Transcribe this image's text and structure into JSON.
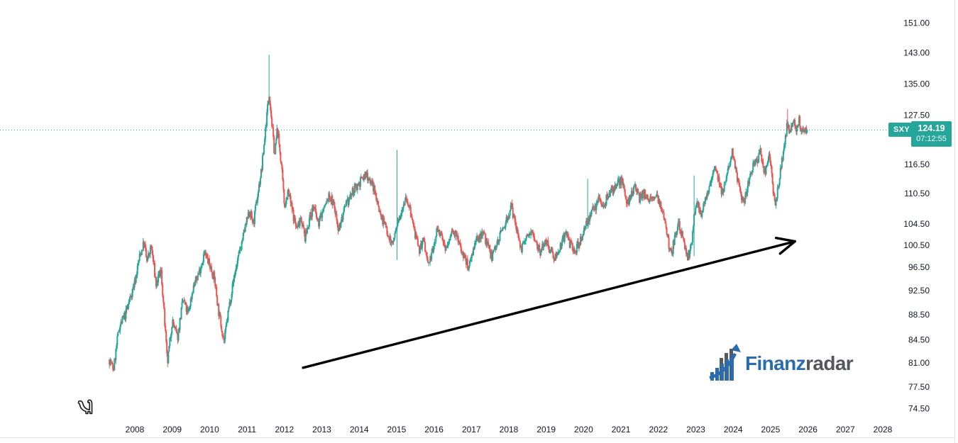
{
  "chart_data": {
    "type": "candlestick",
    "symbol": "SXY",
    "last_price": 124.19,
    "last_price_label": "124.19",
    "countdown": "07:12:55",
    "y_axis": {
      "scale": "log",
      "ticks": [
        151.0,
        143.0,
        135.0,
        127.5,
        116.5,
        110.5,
        104.5,
        100.5,
        96.5,
        92.5,
        88.5,
        84.5,
        81.0,
        77.5,
        74.5
      ]
    },
    "x_axis": {
      "years": [
        2008,
        2009,
        2010,
        2011,
        2012,
        2013,
        2014,
        2015,
        2016,
        2017,
        2018,
        2019,
        2020,
        2021,
        2022,
        2023,
        2024,
        2025,
        2026,
        2027,
        2028
      ]
    },
    "series_anchors": [
      [
        2007.32,
        81.5
      ],
      [
        2007.43,
        80.0
      ],
      [
        2007.58,
        86.5
      ],
      [
        2007.75,
        88.5
      ],
      [
        2008.0,
        94
      ],
      [
        2008.13,
        98.5
      ],
      [
        2008.25,
        101
      ],
      [
        2008.32,
        97.5
      ],
      [
        2008.44,
        100.3
      ],
      [
        2008.57,
        93.5
      ],
      [
        2008.7,
        96
      ],
      [
        2008.87,
        80.8
      ],
      [
        2009.0,
        87.5
      ],
      [
        2009.14,
        84.8
      ],
      [
        2009.29,
        91
      ],
      [
        2009.42,
        88.5
      ],
      [
        2009.56,
        93
      ],
      [
        2009.71,
        95.5
      ],
      [
        2009.86,
        99
      ],
      [
        2010.0,
        97
      ],
      [
        2010.13,
        94.5
      ],
      [
        2010.24,
        89
      ],
      [
        2010.39,
        84.2
      ],
      [
        2010.51,
        89.5
      ],
      [
        2010.66,
        95
      ],
      [
        2010.81,
        99.5
      ],
      [
        2010.94,
        103.5
      ],
      [
        2011.07,
        107
      ],
      [
        2011.17,
        104.5
      ],
      [
        2011.28,
        110
      ],
      [
        2011.4,
        116
      ],
      [
        2011.49,
        124
      ],
      [
        2011.59,
        133
      ],
      [
        2011.66,
        126
      ],
      [
        2011.74,
        118.5
      ],
      [
        2011.81,
        124.5
      ],
      [
        2011.91,
        117
      ],
      [
        2012.0,
        108
      ],
      [
        2012.1,
        111
      ],
      [
        2012.21,
        107
      ],
      [
        2012.33,
        103.5
      ],
      [
        2012.44,
        106
      ],
      [
        2012.55,
        101.8
      ],
      [
        2012.67,
        105.5
      ],
      [
        2012.78,
        108
      ],
      [
        2012.9,
        104.5
      ],
      [
        2013.05,
        107.5
      ],
      [
        2013.2,
        110
      ],
      [
        2013.31,
        108.5
      ],
      [
        2013.45,
        103.5
      ],
      [
        2013.58,
        106.5
      ],
      [
        2013.73,
        109.5
      ],
      [
        2013.88,
        111.5
      ],
      [
        2014.03,
        113
      ],
      [
        2014.2,
        114.5
      ],
      [
        2014.34,
        112.5
      ],
      [
        2014.45,
        110
      ],
      [
        2014.58,
        106
      ],
      [
        2014.74,
        103.5
      ],
      [
        2014.87,
        100.5
      ],
      [
        2014.96,
        102.5
      ],
      [
        2015.02,
        104
      ],
      [
        2015.13,
        107.5
      ],
      [
        2015.25,
        110
      ],
      [
        2015.36,
        107
      ],
      [
        2015.48,
        103
      ],
      [
        2015.59,
        99.5
      ],
      [
        2015.72,
        101.5
      ],
      [
        2015.84,
        96.9
      ],
      [
        2015.97,
        99.5
      ],
      [
        2016.1,
        104
      ],
      [
        2016.24,
        101
      ],
      [
        2016.35,
        99.8
      ],
      [
        2016.5,
        103.8
      ],
      [
        2016.63,
        101.5
      ],
      [
        2016.77,
        99
      ],
      [
        2016.92,
        96.6
      ],
      [
        2017.03,
        99.5
      ],
      [
        2017.16,
        101.5
      ],
      [
        2017.3,
        103.2
      ],
      [
        2017.43,
        100.5
      ],
      [
        2017.54,
        98.3
      ],
      [
        2017.68,
        101
      ],
      [
        2017.81,
        103
      ],
      [
        2017.94,
        105.5
      ],
      [
        2018.07,
        107.6
      ],
      [
        2018.21,
        103.5
      ],
      [
        2018.34,
        99.8
      ],
      [
        2018.47,
        101.5
      ],
      [
        2018.6,
        103.8
      ],
      [
        2018.74,
        101
      ],
      [
        2018.85,
        99.3
      ],
      [
        2018.98,
        101.8
      ],
      [
        2019.12,
        99.5
      ],
      [
        2019.25,
        98.2
      ],
      [
        2019.38,
        100.5
      ],
      [
        2019.52,
        102.5
      ],
      [
        2019.63,
        100.8
      ],
      [
        2019.76,
        99.4
      ],
      [
        2019.9,
        101
      ],
      [
        2020.01,
        103.5
      ],
      [
        2020.14,
        105.5
      ],
      [
        2020.28,
        107.5
      ],
      [
        2020.41,
        109.5
      ],
      [
        2020.54,
        108
      ],
      [
        2020.67,
        110.5
      ],
      [
        2020.81,
        111.5
      ],
      [
        2020.96,
        113.2
      ],
      [
        2021.05,
        113
      ],
      [
        2021.15,
        107.5
      ],
      [
        2021.26,
        110.5
      ],
      [
        2021.38,
        111.7
      ],
      [
        2021.49,
        109.5
      ],
      [
        2021.62,
        110.5
      ],
      [
        2021.76,
        109
      ],
      [
        2021.89,
        110.5
      ],
      [
        2022.02,
        108.5
      ],
      [
        2022.14,
        106.3
      ],
      [
        2022.25,
        101.5
      ],
      [
        2022.35,
        98.8
      ],
      [
        2022.44,
        102
      ],
      [
        2022.54,
        105
      ],
      [
        2022.63,
        102.5
      ],
      [
        2022.73,
        99.5
      ],
      [
        2022.8,
        98.3
      ],
      [
        2022.88,
        100.5
      ],
      [
        2022.95,
        106
      ],
      [
        2023.05,
        108.5
      ],
      [
        2023.14,
        106.5
      ],
      [
        2023.24,
        109.5
      ],
      [
        2023.35,
        111.5
      ],
      [
        2023.44,
        114.5
      ],
      [
        2023.52,
        116.3
      ],
      [
        2023.61,
        113.5
      ],
      [
        2023.71,
        110.5
      ],
      [
        2023.8,
        112.5
      ],
      [
        2023.9,
        116.5
      ],
      [
        2023.97,
        119.3
      ],
      [
        2024.07,
        115.5
      ],
      [
        2024.18,
        110.5
      ],
      [
        2024.28,
        108.5
      ],
      [
        2024.37,
        111.5
      ],
      [
        2024.47,
        114.5
      ],
      [
        2024.56,
        116.5
      ],
      [
        2024.66,
        118
      ],
      [
        2024.73,
        119.5
      ],
      [
        2024.83,
        114.5
      ],
      [
        2024.9,
        116.5
      ],
      [
        2024.98,
        118.5
      ],
      [
        2025.07,
        110.5
      ],
      [
        2025.13,
        108.5
      ],
      [
        2025.21,
        112
      ],
      [
        2025.28,
        116
      ],
      [
        2025.36,
        120
      ],
      [
        2025.45,
        125.5
      ],
      [
        2025.53,
        123.5
      ],
      [
        2025.6,
        126
      ],
      [
        2025.68,
        124.5
      ],
      [
        2025.76,
        126.5
      ],
      [
        2025.83,
        123.5
      ],
      [
        2025.91,
        124.8
      ],
      [
        2025.97,
        124.19
      ]
    ],
    "spike_candles": [
      {
        "year": 2011.59,
        "high": 142.5
      },
      {
        "year": 2015.02,
        "high": 119.7,
        "low": 97.8
      },
      {
        "year": 2020.1,
        "high": 113.5
      },
      {
        "year": 2022.95,
        "high": 114.2,
        "low": 98.5
      },
      {
        "year": 2024.98,
        "high": 119.5
      },
      {
        "year": 2025.45,
        "high": 129.0
      }
    ],
    "annotation_arrow": {
      "from_year": 2012.5,
      "from_price": 80.3,
      "to_year": 2025.65,
      "to_price": 101.2
    },
    "colors": {
      "up": "#26a69a",
      "down": "#ef5350",
      "last_price_line": "#26a69a",
      "badge_bg": "#26a69a",
      "axis_text": "#131722",
      "annotation": "#000000",
      "border": "#e0e3eb"
    }
  },
  "logo": {
    "text_primary": "Finanz",
    "text_secondary": "radar",
    "primary_color": "#2a6cad",
    "secondary_color": "#55565b"
  },
  "icons": {
    "dinosaur": "sauropod-outline"
  }
}
